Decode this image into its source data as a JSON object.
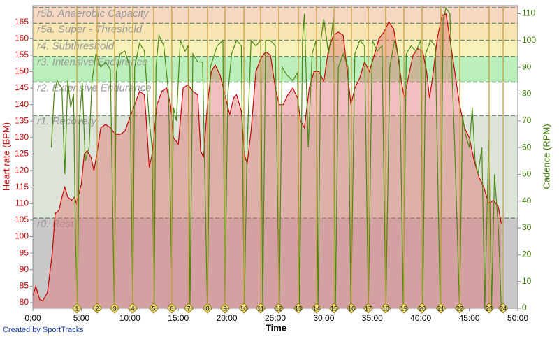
{
  "chart_data": {
    "type": "line",
    "xlabel": "Time",
    "ylabel": "Heart rate (BPM)",
    "y2label": "Cadence (RPM)",
    "footer": "Created by SportTracks",
    "xlim": [
      0,
      50
    ],
    "xticks": [
      {
        "value": 0,
        "label": "0:00"
      },
      {
        "value": 5,
        "label": "5:00"
      },
      {
        "value": 10,
        "label": "10:00"
      },
      {
        "value": 15,
        "label": "15:00"
      },
      {
        "value": 20,
        "label": "20:00"
      },
      {
        "value": 25,
        "label": "25:00"
      },
      {
        "value": 30,
        "label": "30:00"
      },
      {
        "value": 35,
        "label": "35:00"
      },
      {
        "value": 40,
        "label": "40:00"
      },
      {
        "value": 45,
        "label": "45:00"
      },
      {
        "value": 50,
        "label": "50:00"
      }
    ],
    "ylim": [
      78.3,
      170
    ],
    "yticks": [
      80,
      85,
      90,
      95,
      100,
      105,
      110,
      115,
      120,
      125,
      130,
      135,
      140,
      145,
      150,
      155,
      160,
      165
    ],
    "y2lim": [
      0,
      113
    ],
    "y2ticks": [
      0,
      10,
      20,
      30,
      40,
      50,
      60,
      70,
      80,
      90,
      100,
      110
    ],
    "zones": [
      {
        "label": "r0. Rest",
        "bpm": 105.6,
        "color": "#9a9a9a"
      },
      {
        "label": "r1. Recovery",
        "bpm": 136.7,
        "color": "#a8bca0"
      },
      {
        "label": "r2. Extensive Endurance",
        "bpm": 146.8,
        "color": "#9ee89e"
      },
      {
        "label": "r3. Intensive Endurance",
        "bpm": 154.6,
        "color": "#f5ec9c"
      },
      {
        "label": "r4. Subthreshold",
        "bpm": 159.5,
        "color": "#f5d890"
      },
      {
        "label": "r5a. Super - Threshold",
        "bpm": 164.6,
        "color": "#f2c8a8"
      },
      {
        "label": "r5b. Anaerobic Capacity",
        "bpm": 169.4,
        "color": "#eec0c0"
      }
    ],
    "laps": {
      "x": [
        4.54,
        6.63,
        8.43,
        10.3,
        12.46,
        14.33,
        16.07,
        18.01,
        19.81,
        21.76,
        23.49,
        25.36,
        27.38,
        29.25,
        31.05,
        32.85,
        34.58,
        36.38,
        38.26,
        40.13,
        42.07,
        44.02,
        47.04,
        48.49
      ],
      "labels": [
        "1",
        "2",
        "3",
        "4",
        "5",
        "6",
        "7",
        "8",
        "9",
        "10",
        "11",
        "12",
        "13",
        "14",
        "15",
        "16",
        "17",
        "18",
        "19",
        "20",
        "21",
        "22",
        "23",
        "24"
      ]
    },
    "series": [
      {
        "axis": "y",
        "color": "#cc0000",
        "fill": "#e07070",
        "x": [
          0,
          0.3,
          0.7,
          1,
          1.5,
          2,
          2.3,
          2.7,
          3,
          3.3,
          3.6,
          4,
          4.3,
          4.5,
          5,
          5.3,
          5.6,
          6,
          6.3,
          6.6,
          7,
          7.5,
          8,
          8.5,
          9,
          9.5,
          10,
          10.5,
          11,
          11.5,
          11.7,
          12,
          12.3,
          12.8,
          13.3,
          13.8,
          14.2,
          14.5,
          15,
          15.5,
          16,
          16.5,
          17,
          17.3,
          17.6,
          18,
          18.4,
          18.8,
          19.3,
          19.8,
          20.3,
          20.7,
          21,
          21.5,
          21.8,
          22.1,
          22.5,
          23,
          23.5,
          24,
          24.5,
          25,
          25.4,
          25.8,
          26.3,
          26.8,
          27.3,
          27.6,
          28,
          28.5,
          29,
          29.5,
          30,
          30.5,
          31,
          31.5,
          32,
          32.5,
          32.8,
          33.2,
          33.7,
          34.2,
          34.7,
          35.2,
          35.7,
          36.2,
          36.7,
          37.2,
          37.6,
          38,
          38.3,
          38.7,
          39.2,
          39.7,
          40.2,
          40.6,
          40.9,
          41.2,
          41.7,
          42.2,
          42.6,
          43,
          43.5,
          44,
          44.5,
          45,
          45.5,
          46,
          46.5,
          47,
          47.5,
          48,
          48.3
        ],
        "values": [
          82,
          85,
          81,
          80.5,
          83,
          95,
          107,
          108,
          112,
          115,
          112,
          111,
          112,
          110,
          116,
          125,
          126,
          124,
          120,
          125,
          133,
          134,
          133,
          131,
          131,
          132,
          136,
          140,
          144,
          143,
          135,
          121,
          125,
          140,
          144,
          145,
          140,
          130,
          128,
          145,
          146,
          144,
          143,
          126,
          124,
          140,
          150,
          152,
          149,
          143,
          137,
          142,
          143,
          138,
          125,
          122,
          132,
          150,
          154,
          156,
          155,
          145,
          140,
          140,
          143,
          145,
          142,
          135,
          133,
          145,
          150,
          150,
          147,
          157,
          161,
          162,
          161,
          148,
          140,
          145,
          148,
          153,
          150,
          155,
          160,
          162,
          165,
          163,
          156,
          147,
          142,
          148,
          155,
          157,
          156,
          150,
          142,
          148,
          160,
          167,
          167.5,
          160,
          150,
          140,
          133,
          130,
          123,
          118,
          115,
          110,
          111,
          109,
          104
        ]
      },
      {
        "axis": "y2",
        "color": "#4a8a10",
        "x": [
          1.9,
          2.2,
          2.5,
          3,
          3.3,
          3.6,
          3.9,
          4.2,
          4.4,
          4.6,
          4.8,
          5.1,
          5.4,
          5.8,
          6.1,
          6.5,
          7,
          7.5,
          8,
          8.4,
          8.6,
          9,
          9.5,
          10,
          10.3,
          10.5,
          11,
          11.5,
          12,
          12.3,
          12.5,
          12.7,
          13,
          13.5,
          14,
          14.3,
          14.5,
          14.8,
          15.2,
          15.7,
          16,
          16.2,
          16.5,
          17,
          17.5,
          18,
          18.3,
          19,
          19.6,
          19.8,
          20.1,
          20.5,
          21,
          21.5,
          21.8,
          22.1,
          22.5,
          23,
          23.5,
          23.7,
          24,
          24.5,
          25,
          25.4,
          25.7,
          26.2,
          26.8,
          27.3,
          27.5,
          27.8,
          28,
          28.4,
          28.8,
          29.2,
          29.4,
          29.7,
          30,
          30.5,
          31,
          31.2,
          31.5,
          32,
          32.5,
          32.8,
          33.2,
          33.7,
          34.2,
          34.6,
          35,
          35.5,
          36,
          36.4,
          36.8,
          37.3,
          37.8,
          38.2,
          38.5,
          39,
          39.5,
          40,
          40.2,
          40.5,
          41,
          41.5,
          42,
          42.3,
          42.6,
          43,
          43.5,
          44,
          44.3,
          44.6,
          45,
          45.3,
          45.6,
          45.9,
          46.3,
          46.6,
          47,
          47.3,
          47.6,
          48,
          48.3
        ],
        "values": [
          60,
          80,
          85,
          82,
          50,
          85,
          75,
          80,
          25,
          0,
          70,
          84,
          55,
          60,
          85,
          95,
          90,
          92,
          89,
          0,
          88,
          95,
          96,
          90,
          0,
          90,
          99,
          96,
          70,
          60,
          0,
          90,
          102,
          98,
          80,
          15,
          75,
          70,
          100,
          96,
          98,
          0,
          95,
          92,
          92,
          0,
          90,
          98,
          100,
          0,
          80,
          95,
          100,
          98,
          0,
          60,
          100,
          98,
          100,
          0,
          100,
          100,
          98,
          0,
          90,
          87,
          85,
          88,
          0,
          100,
          110,
          60,
          95,
          100,
          0,
          100,
          108,
          95,
          108,
          0,
          90,
          95,
          90,
          0,
          95,
          100,
          98,
          0,
          100,
          96,
          98,
          0,
          90,
          100,
          92,
          0,
          95,
          98,
          96,
          100,
          0,
          95,
          100,
          98,
          0,
          108,
          112,
          110,
          60,
          0,
          72,
          65,
          60,
          75,
          55,
          50,
          60,
          0,
          63,
          0,
          50,
          30,
          0
        ]
      }
    ]
  }
}
